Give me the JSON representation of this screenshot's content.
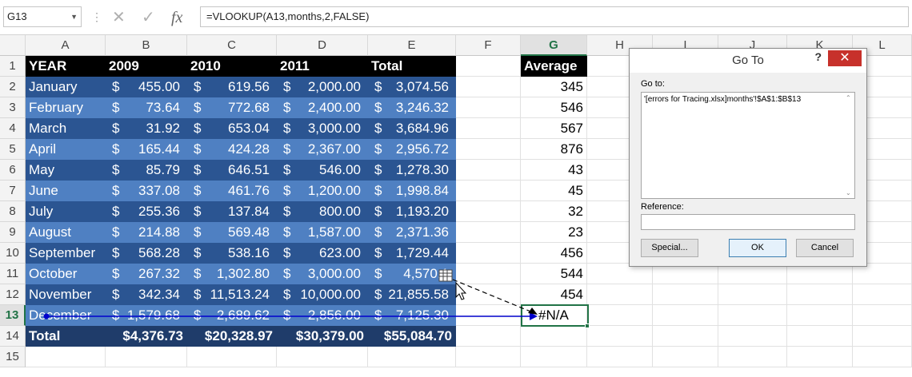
{
  "formula_bar": {
    "name_box": "G13",
    "formula": "=VLOOKUP(A13,months,2,FALSE)",
    "cancel_icon": "cancel-x-icon",
    "enter_icon": "check-icon",
    "fx_label": "fx"
  },
  "columns": [
    "A",
    "B",
    "C",
    "D",
    "E",
    "F",
    "G",
    "H",
    "I",
    "J",
    "K",
    "L"
  ],
  "rows": [
    "1",
    "2",
    "3",
    "4",
    "5",
    "6",
    "7",
    "8",
    "9",
    "10",
    "11",
    "12",
    "13",
    "14",
    "15"
  ],
  "header": {
    "year": "YEAR",
    "c2009": "2009",
    "c2010": "2010",
    "c2011": "2011",
    "total": "Total",
    "average": "Average"
  },
  "data_rows": [
    {
      "month": "January",
      "v2009": "455.00",
      "v2010": "619.56",
      "v2011": "2,000.00",
      "total": "3,074.56",
      "avg": "345"
    },
    {
      "month": "February",
      "v2009": "73.64",
      "v2010": "772.68",
      "v2011": "2,400.00",
      "total": "3,246.32",
      "avg": "546"
    },
    {
      "month": "March",
      "v2009": "31.92",
      "v2010": "653.04",
      "v2011": "3,000.00",
      "total": "3,684.96",
      "avg": "567"
    },
    {
      "month": "April",
      "v2009": "165.44",
      "v2010": "424.28",
      "v2011": "2,367.00",
      "total": "2,956.72",
      "avg": "876"
    },
    {
      "month": "May",
      "v2009": "85.79",
      "v2010": "646.51",
      "v2011": "546.00",
      "total": "1,278.30",
      "avg": "43"
    },
    {
      "month": "June",
      "v2009": "337.08",
      "v2010": "461.76",
      "v2011": "1,200.00",
      "total": "1,998.84",
      "avg": "45"
    },
    {
      "month": "July",
      "v2009": "255.36",
      "v2010": "137.84",
      "v2011": "800.00",
      "total": "1,193.20",
      "avg": "32"
    },
    {
      "month": "August",
      "v2009": "214.88",
      "v2010": "569.48",
      "v2011": "1,587.00",
      "total": "2,371.36",
      "avg": "23"
    },
    {
      "month": "September",
      "v2009": "568.28",
      "v2010": "538.16",
      "v2011": "623.00",
      "total": "1,729.44",
      "avg": "456"
    },
    {
      "month": "October",
      "v2009": "267.32",
      "v2010": "1,302.80",
      "v2011": "3,000.00",
      "total": "4,570.1",
      "avg": "544"
    },
    {
      "month": "November",
      "v2009": "342.34",
      "v2010": "11,513.24",
      "v2011": "10,000.00",
      "total": "21,855.58",
      "avg": "454"
    },
    {
      "month": "December",
      "v2009": "1,579.68",
      "v2010": "2,689.62",
      "v2011": "2,856.00",
      "total": "7,125.30",
      "avg": "#N/A"
    }
  ],
  "totals": {
    "label": "Total",
    "t2009": "$4,376.73",
    "t2010": "$20,328.97",
    "t2011": "$30,379.00",
    "ttotal": "$55,084.70"
  },
  "currency": "$",
  "dialog": {
    "title": "Go To",
    "help": "?",
    "close": "✕",
    "goto_label": "Go to:",
    "goto_item": "'[errors for Tracing.xlsx]months'!$A$1:$B$13",
    "reference_label": "Reference:",
    "reference_value": "",
    "special": "Special...",
    "ok": "OK",
    "cancel": "Cancel"
  },
  "colors": {
    "header": "#000000",
    "band_dark": "#2b5592",
    "band_light": "#4f80c2",
    "total_row": "#1f3c6a",
    "select_green": "#217346",
    "trace_blue": "#0000cc"
  }
}
